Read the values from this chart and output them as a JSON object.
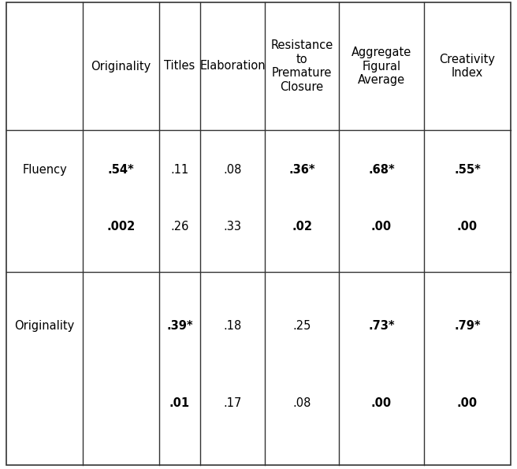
{
  "col_headers": [
    "",
    "Originality",
    "Titles",
    "Elaboration",
    "Resistance\nto\nPremature\nClosure",
    "Aggregate\nFigural\nAverage",
    "Creativity\nIndex"
  ],
  "rows": [
    {
      "label": "Fluency",
      "corr": [
        ".54*",
        ".11",
        ".08",
        ".36*",
        ".68*",
        ".55*"
      ],
      "sig": [
        ".002",
        ".26",
        ".33",
        ".02",
        ".00",
        ".00"
      ],
      "bold_corr": [
        true,
        false,
        false,
        true,
        true,
        true
      ],
      "bold_sig": [
        true,
        false,
        false,
        true,
        true,
        true
      ]
    },
    {
      "label": "Originality",
      "corr": [
        "",
        ".39*",
        ".18",
        ".25",
        ".73*",
        ".79*"
      ],
      "sig": [
        "",
        ".01",
        ".17",
        ".08",
        ".00",
        ".00"
      ],
      "bold_corr": [
        false,
        true,
        false,
        false,
        true,
        true
      ],
      "bold_sig": [
        false,
        true,
        false,
        false,
        true,
        true
      ]
    }
  ],
  "background_color": "#ffffff",
  "line_color": "#333333",
  "text_color": "#000000",
  "font_size": 10.5,
  "font_family": "Times New Roman"
}
